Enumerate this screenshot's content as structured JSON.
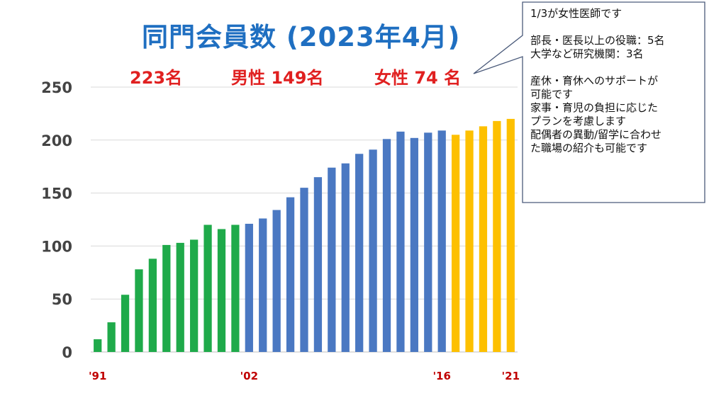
{
  "header": {
    "title": "同門会員数 (2023年4月)",
    "total": "223名",
    "male": "男性 149名",
    "female": "女性 74 名"
  },
  "callout": {
    "lines": [
      "1/3が女性医師です",
      "",
      "部長・医長以上の役職：5名",
      "大学など研究機関：3名",
      "",
      "産休・育休へのサポートが",
      "可能です",
      "家事・育児の負担に応じた",
      "プランを考慮します",
      "配偶者の異動/留学に合わせ",
      "た職場の紹介も可能です"
    ]
  },
  "colors": {
    "green": "#1faa4a",
    "blue": "#4a78c2",
    "yellow": "#fdc000"
  },
  "chart_data": {
    "type": "bar",
    "ylim": [
      0,
      250
    ],
    "yticks": [
      0,
      50,
      100,
      150,
      200,
      250
    ],
    "grid": true,
    "x_labels": [
      {
        "index": 0,
        "label": "'91"
      },
      {
        "index": 11,
        "label": "'02"
      },
      {
        "index": 25,
        "label": "'16"
      },
      {
        "index": 30,
        "label": "'21"
      }
    ],
    "values": [
      12,
      28,
      54,
      78,
      88,
      101,
      103,
      106,
      120,
      116,
      120,
      121,
      126,
      134,
      146,
      155,
      165,
      174,
      178,
      187,
      191,
      201,
      208,
      202,
      207,
      209,
      205,
      209,
      213,
      218,
      220
    ],
    "color_groups": [
      "green",
      "green",
      "green",
      "green",
      "green",
      "green",
      "green",
      "green",
      "green",
      "green",
      "green",
      "blue",
      "blue",
      "blue",
      "blue",
      "blue",
      "blue",
      "blue",
      "blue",
      "blue",
      "blue",
      "blue",
      "blue",
      "blue",
      "blue",
      "blue",
      "yellow",
      "yellow",
      "yellow",
      "yellow",
      "yellow"
    ]
  }
}
